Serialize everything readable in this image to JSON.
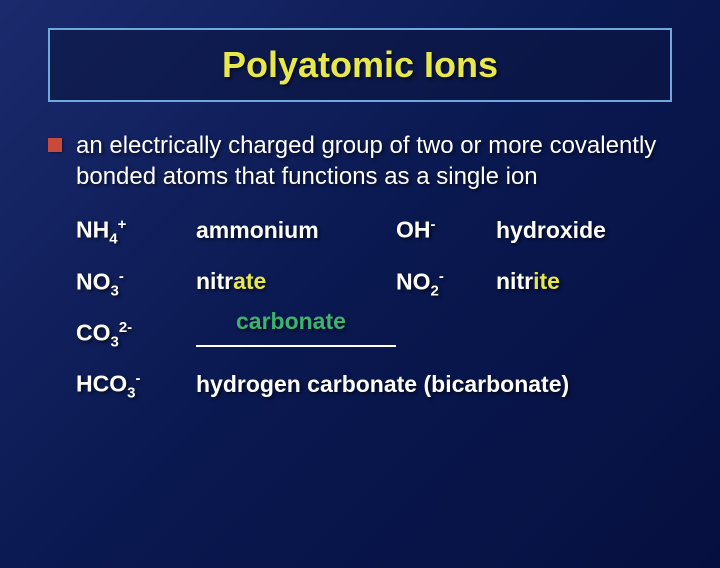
{
  "background": {
    "gradient_start": "#1a2a6c",
    "gradient_mid": "#0a1850",
    "gradient_end": "#061040"
  },
  "title": {
    "text": "Polyatomic Ions",
    "color": "#e8e84a",
    "fontsize": 36,
    "border_color": "#6fa8dc"
  },
  "bullet": {
    "color": "#c94a3a"
  },
  "definition": {
    "text": "an electrically charged group of two or more covalently bonded atoms that functions as a single ion",
    "color": "#ffffff",
    "fontsize": 24
  },
  "accent_color": "#e8e84a",
  "answer_color": "#3cb371",
  "ions": {
    "row1": {
      "f1_base": "NH",
      "f1_sub": "4",
      "f1_sup": "+",
      "name1": "ammonium",
      "f2_base": "OH",
      "f2_sub": "",
      "f2_sup": "-",
      "name2": "hydroxide"
    },
    "row2": {
      "f1_base": "NO",
      "f1_sub": "3",
      "f1_sup": "-",
      "name1_pre": "nitr",
      "name1_accent": "ate",
      "f2_base": "NO",
      "f2_sub": "2",
      "f2_sup": "-",
      "name2_pre": "nitr",
      "name2_accent": "ite"
    },
    "row3": {
      "f1_base": "CO",
      "f1_sub": "3",
      "f1_sup": "2-",
      "answer": "carbonate"
    },
    "row4": {
      "f1_base": "HCO",
      "f1_sub": "3",
      "f1_sup": "-",
      "name": "hydrogen carbonate (bicarbonate)"
    }
  }
}
